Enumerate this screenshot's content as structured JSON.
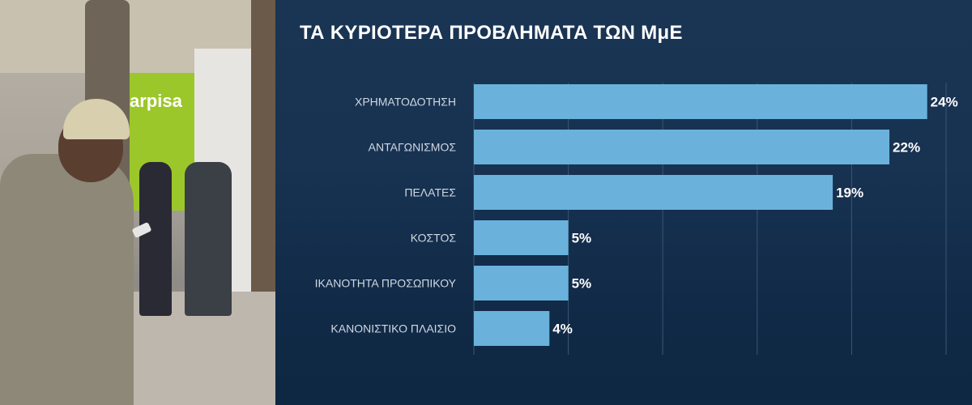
{
  "chart_data": {
    "type": "bar",
    "orientation": "horizontal",
    "title": "ΤΑ ΚΥΡΙΟΤΕΡΑ ΠΡΟΒΛΗΜΑΤΑ ΤΩΝ ΜμΕ",
    "categories": [
      "ΧΡΗΜΑΤΟΔΟΤΗΣΗ",
      "ΑΝΤΑΓΩΝΙΣΜΟΣ",
      "ΠΕΛΑΤΕΣ",
      "ΚΟΣΤΟΣ",
      "ΙΚΑΝΟΤΗΤΑ ΠΡΟΣΩΠΙΚΟΥ",
      "ΚΑΝΟΝΙΣΤΙΚΟ ΠΛΑΙΣΙΟ"
    ],
    "values": [
      24,
      22,
      19,
      5,
      5,
      4
    ],
    "value_labels": [
      "24%",
      "22%",
      "19%",
      "5%",
      "5%",
      "4%"
    ],
    "xlim": [
      0,
      25
    ],
    "grid": true,
    "legend": "none",
    "colors": {
      "bar": "#6ab2dc",
      "label": "#cfd8e2",
      "value": "#ffffff",
      "grid": "#3a5673"
    }
  },
  "photo": {
    "sign_text": "arpisa",
    "icons": [
      "tree-trunk",
      "person-with-cap-and-phone",
      "pedestrians",
      "shop-front"
    ]
  }
}
